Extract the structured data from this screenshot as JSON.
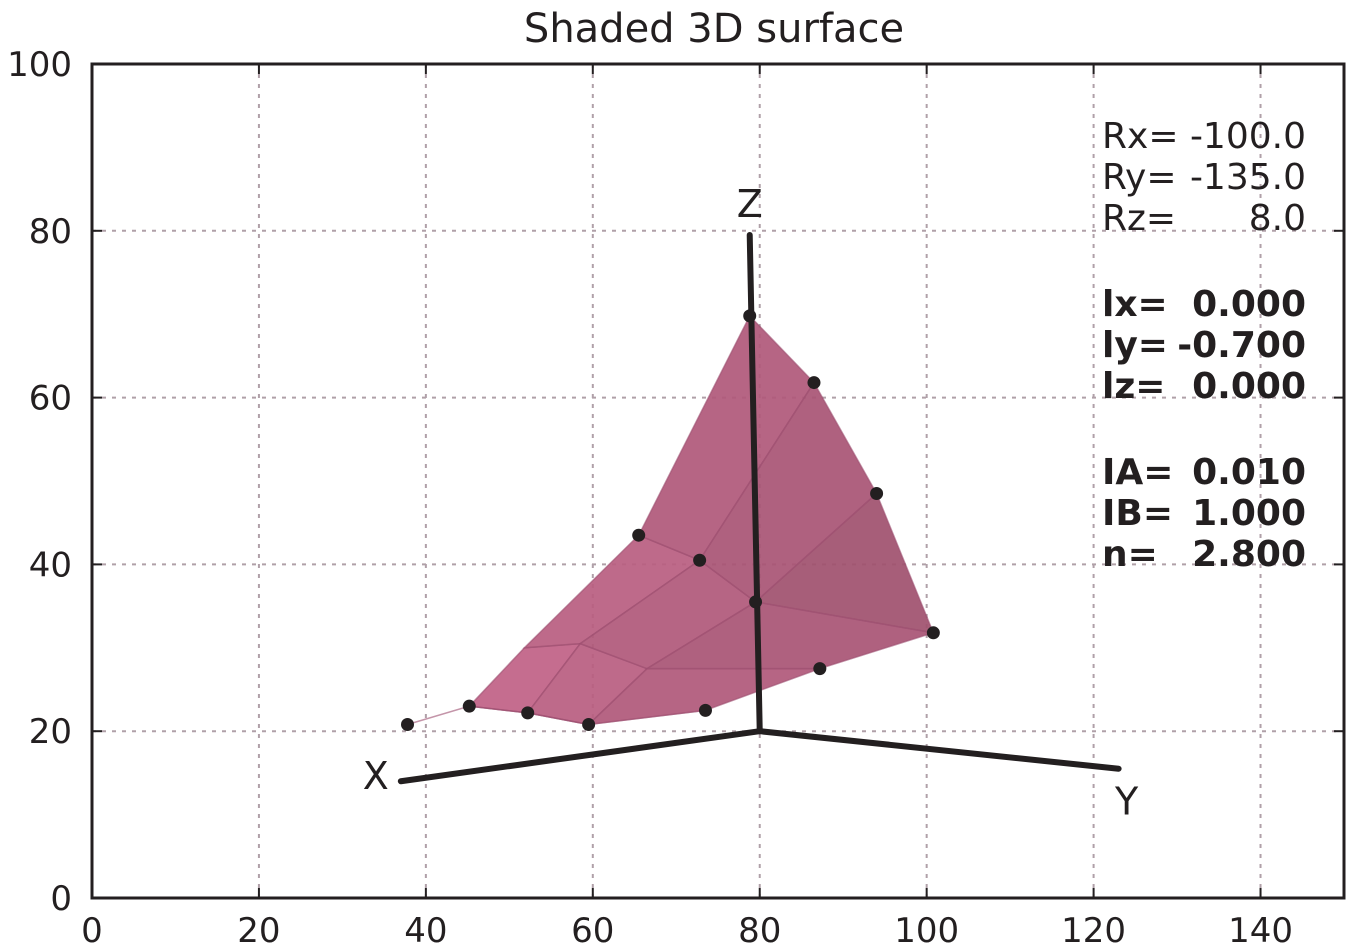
{
  "chart_data": {
    "type": "scatter",
    "title": "Shaded 3D surface",
    "xlabel": "",
    "ylabel": "",
    "xlim": [
      0,
      150
    ],
    "ylim": [
      0,
      100
    ],
    "xticks": [
      "0",
      "20",
      "40",
      "60",
      "80",
      "100",
      "120",
      "140"
    ],
    "yticks": [
      "0",
      "20",
      "40",
      "60",
      "80",
      "100"
    ],
    "grid": true,
    "surface_color": "#c8658c",
    "surface_dark_color": "#a0506e",
    "axes_lines": {
      "origin": [
        80,
        20
      ],
      "x_end": [
        37,
        14
      ],
      "y_end": [
        123,
        15.5
      ],
      "z_end": [
        78.8,
        79.5
      ]
    },
    "axis_names": {
      "x": "X",
      "y": "Y",
      "z": "Z"
    },
    "grid_points": [
      [
        [
          37.8,
          20.8
        ],
        [
          45.2,
          23.0
        ],
        [
          51.8,
          30.0
        ],
        [
          65.5,
          43.5
        ],
        [
          78.8,
          69.8
        ]
      ],
      [
        [
          45.2,
          23.0
        ],
        [
          52.2,
          22.2
        ],
        [
          58.5,
          30.5
        ],
        [
          72.8,
          40.5
        ],
        [
          86.5,
          61.8
        ]
      ],
      [
        [
          52.2,
          22.2
        ],
        [
          59.5,
          20.8
        ],
        [
          66.5,
          27.5
        ],
        [
          79.5,
          35.5
        ],
        [
          94.0,
          48.5
        ]
      ],
      [
        [
          59.5,
          20.8
        ],
        [
          73.5,
          22.5
        ],
        [
          87.2,
          27.5
        ],
        [
          100.8,
          31.8
        ],
        [
          100.8,
          31.8
        ]
      ]
    ],
    "marked_points": [
      {
        "x": 37.8,
        "y": 20.8
      },
      {
        "x": 45.2,
        "y": 23.0
      },
      {
        "x": 52.2,
        "y": 22.2
      },
      {
        "x": 59.5,
        "y": 20.8
      },
      {
        "x": 73.5,
        "y": 22.5
      },
      {
        "x": 87.2,
        "y": 27.5
      },
      {
        "x": 100.8,
        "y": 31.8
      },
      {
        "x": 94.0,
        "y": 48.5
      },
      {
        "x": 86.5,
        "y": 61.8
      },
      {
        "x": 78.8,
        "y": 69.8
      },
      {
        "x": 65.5,
        "y": 43.5
      },
      {
        "x": 72.8,
        "y": 40.5
      },
      {
        "x": 79.5,
        "y": 35.5
      }
    ],
    "annotations": {
      "rotation": [
        {
          "label": "Rx=",
          "value": "-100.0"
        },
        {
          "label": "Ry=",
          "value": "-135.0"
        },
        {
          "label": "Rz=",
          "value": "8.0"
        }
      ],
      "light": [
        {
          "label": "lx=",
          "value": "0.000"
        },
        {
          "label": "ly=",
          "value": "-0.700"
        },
        {
          "label": "lz=",
          "value": "0.000"
        }
      ],
      "params": [
        {
          "label": "IA=",
          "value": "0.010"
        },
        {
          "label": "IB=",
          "value": "1.000"
        },
        {
          "label": "n=",
          "value": "2.800"
        }
      ]
    }
  }
}
